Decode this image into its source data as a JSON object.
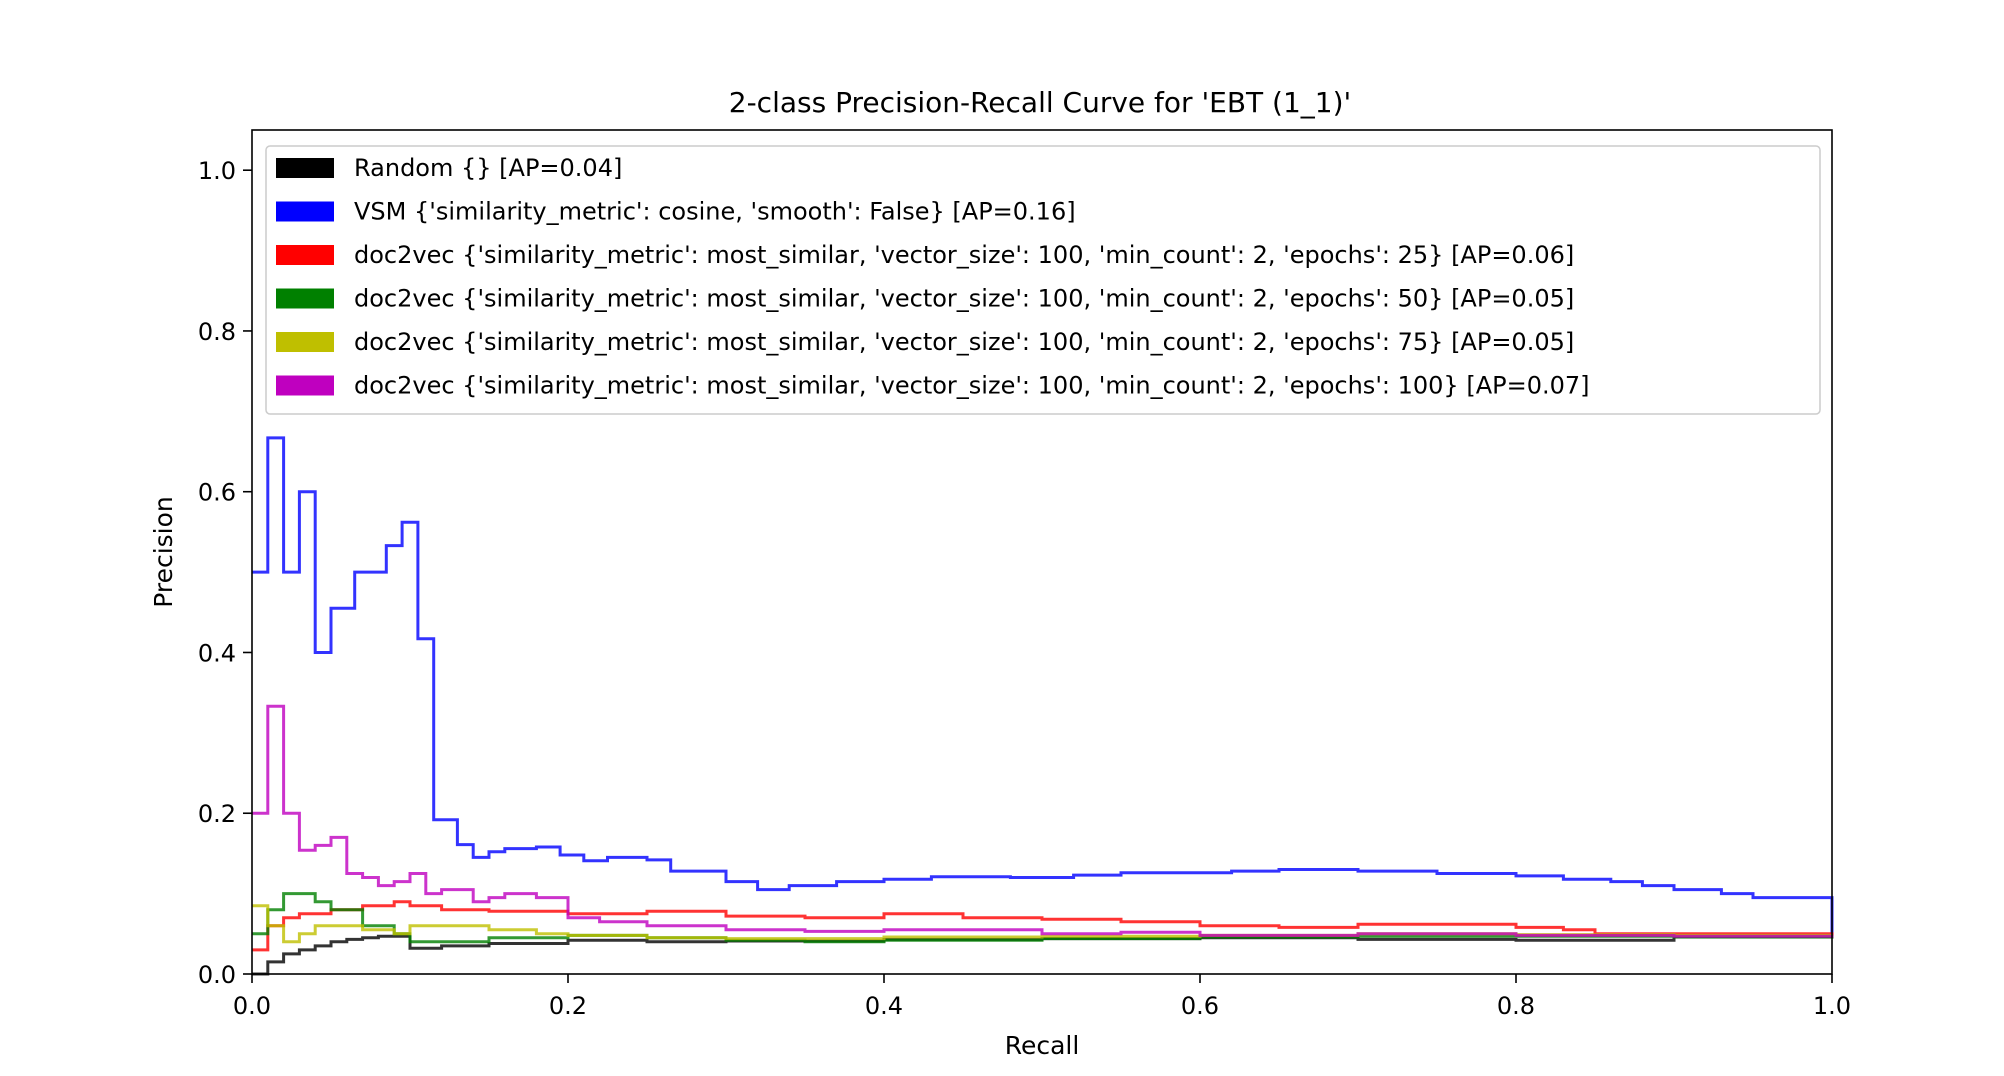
{
  "chart_data": {
    "type": "line",
    "title": "2-class Precision-Recall Curve for 'EBT (1_1)'",
    "xlabel": "Recall",
    "ylabel": "Precision",
    "xlim": [
      0.0,
      1.0
    ],
    "ylim": [
      0.0,
      1.05
    ],
    "xticks": [
      "0.0",
      "0.2",
      "0.4",
      "0.6",
      "0.8",
      "1.0"
    ],
    "yticks": [
      "0.0",
      "0.2",
      "0.4",
      "0.6",
      "0.8",
      "1.0"
    ],
    "grid": false,
    "legend_position": "top-left",
    "drawstyle": "step",
    "series": [
      {
        "name": "Random {} [AP=0.04]",
        "color": "#000000",
        "x": [
          0.0,
          0.01,
          0.02,
          0.03,
          0.04,
          0.05,
          0.06,
          0.07,
          0.08,
          0.09,
          0.1,
          0.12,
          0.15,
          0.2,
          0.25,
          0.3,
          0.4,
          0.5,
          0.6,
          0.7,
          0.8,
          0.9,
          1.0
        ],
        "y": [
          0.0,
          0.015,
          0.025,
          0.03,
          0.035,
          0.04,
          0.043,
          0.045,
          0.047,
          0.047,
          0.032,
          0.035,
          0.038,
          0.042,
          0.04,
          0.041,
          0.043,
          0.044,
          0.045,
          0.043,
          0.042,
          0.046,
          0.049
        ]
      },
      {
        "name": "VSM {'similarity_metric': cosine, 'smooth': False} [AP=0.16]",
        "color": "#0000ff",
        "x": [
          0.0,
          0.01,
          0.02,
          0.03,
          0.04,
          0.05,
          0.065,
          0.075,
          0.085,
          0.095,
          0.105,
          0.115,
          0.13,
          0.14,
          0.15,
          0.16,
          0.18,
          0.195,
          0.21,
          0.225,
          0.25,
          0.265,
          0.3,
          0.32,
          0.34,
          0.37,
          0.4,
          0.43,
          0.46,
          0.48,
          0.52,
          0.55,
          0.6,
          0.62,
          0.65,
          0.7,
          0.75,
          0.8,
          0.83,
          0.86,
          0.88,
          0.9,
          0.93,
          0.95,
          1.0
        ],
        "y": [
          0.5,
          0.667,
          0.5,
          0.6,
          0.4,
          0.455,
          0.5,
          0.5,
          0.533,
          0.562,
          0.417,
          0.192,
          0.161,
          0.145,
          0.152,
          0.156,
          0.158,
          0.148,
          0.141,
          0.145,
          0.142,
          0.128,
          0.115,
          0.105,
          0.11,
          0.115,
          0.118,
          0.121,
          0.121,
          0.12,
          0.123,
          0.126,
          0.126,
          0.128,
          0.13,
          0.128,
          0.125,
          0.122,
          0.118,
          0.115,
          0.11,
          0.105,
          0.1,
          0.095,
          0.048
        ]
      },
      {
        "name": "doc2vec {'similarity_metric': most_similar, 'vector_size': 100, 'min_count': 2, 'epochs': 25} [AP=0.06]",
        "color": "#ff0000",
        "x": [
          0.0,
          0.01,
          0.02,
          0.03,
          0.05,
          0.07,
          0.09,
          0.1,
          0.12,
          0.15,
          0.2,
          0.25,
          0.3,
          0.35,
          0.4,
          0.45,
          0.5,
          0.55,
          0.6,
          0.65,
          0.7,
          0.75,
          0.8,
          0.83,
          0.85,
          1.0
        ],
        "y": [
          0.03,
          0.06,
          0.07,
          0.075,
          0.08,
          0.085,
          0.09,
          0.085,
          0.08,
          0.078,
          0.075,
          0.078,
          0.072,
          0.07,
          0.075,
          0.07,
          0.068,
          0.065,
          0.06,
          0.058,
          0.062,
          0.062,
          0.058,
          0.055,
          0.05,
          0.048
        ]
      },
      {
        "name": "doc2vec {'similarity_metric': most_similar, 'vector_size': 100, 'min_count': 2, 'epochs': 50} [AP=0.05]",
        "color": "#008000",
        "x": [
          0.0,
          0.01,
          0.02,
          0.03,
          0.04,
          0.05,
          0.07,
          0.09,
          0.1,
          0.12,
          0.15,
          0.2,
          0.25,
          0.3,
          0.35,
          0.4,
          0.5,
          0.6,
          0.7,
          0.8,
          0.9,
          1.0
        ],
        "y": [
          0.05,
          0.08,
          0.1,
          0.1,
          0.09,
          0.08,
          0.06,
          0.05,
          0.04,
          0.04,
          0.045,
          0.048,
          0.045,
          0.042,
          0.04,
          0.042,
          0.044,
          0.046,
          0.047,
          0.047,
          0.046,
          0.048
        ]
      },
      {
        "name": "doc2vec {'similarity_metric': most_similar, 'vector_size': 100, 'min_count': 2, 'epochs': 75} [AP=0.05]",
        "color": "#bfbf00",
        "x": [
          0.0,
          0.01,
          0.02,
          0.03,
          0.04,
          0.05,
          0.07,
          0.09,
          0.1,
          0.12,
          0.15,
          0.18,
          0.2,
          0.25,
          0.3,
          0.4,
          0.5,
          0.6,
          0.7,
          0.8,
          0.9,
          1.0
        ],
        "y": [
          0.085,
          0.06,
          0.04,
          0.05,
          0.06,
          0.06,
          0.055,
          0.05,
          0.06,
          0.06,
          0.055,
          0.05,
          0.048,
          0.045,
          0.044,
          0.046,
          0.047,
          0.048,
          0.05,
          0.049,
          0.048,
          0.048
        ]
      },
      {
        "name": "doc2vec {'similarity_metric': most_similar, 'vector_size': 100, 'min_count': 2, 'epochs': 100} [AP=0.07]",
        "color": "#bf00bf",
        "x": [
          0.0,
          0.01,
          0.02,
          0.03,
          0.04,
          0.05,
          0.06,
          0.07,
          0.08,
          0.09,
          0.1,
          0.11,
          0.12,
          0.14,
          0.15,
          0.16,
          0.18,
          0.2,
          0.22,
          0.25,
          0.3,
          0.35,
          0.4,
          0.5,
          0.55,
          0.6,
          0.7,
          0.8,
          0.9,
          1.0
        ],
        "y": [
          0.2,
          0.333,
          0.2,
          0.154,
          0.16,
          0.17,
          0.125,
          0.12,
          0.11,
          0.115,
          0.125,
          0.1,
          0.105,
          0.09,
          0.095,
          0.1,
          0.095,
          0.07,
          0.065,
          0.06,
          0.055,
          0.053,
          0.055,
          0.05,
          0.052,
          0.048,
          0.05,
          0.048,
          0.047,
          0.048
        ]
      }
    ]
  }
}
